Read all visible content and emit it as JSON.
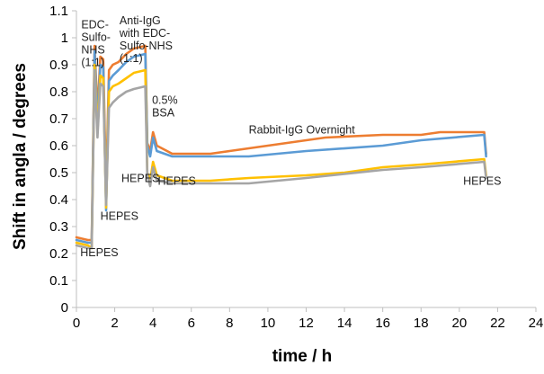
{
  "chart_data": {
    "type": "line",
    "title": "",
    "xlabel": "time / h",
    "ylabel": "Shift in angla / degrees",
    "xlim": [
      0,
      24
    ],
    "ylim": [
      0,
      1.1
    ],
    "xticks": [
      0,
      2,
      4,
      6,
      8,
      10,
      12,
      14,
      16,
      18,
      20,
      22,
      24
    ],
    "yticks": [
      0,
      0.1,
      0.2,
      0.3,
      0.4,
      0.5,
      0.6,
      0.7,
      0.8,
      0.9,
      1,
      1.1
    ],
    "grid": false,
    "legend": "none",
    "series": [
      {
        "color": "#ed7d31",
        "points": [
          [
            0,
            0.26
          ],
          [
            0.6,
            0.25
          ],
          [
            0.8,
            0.25
          ],
          [
            0.95,
            0.97
          ],
          [
            1.1,
            0.72
          ],
          [
            1.25,
            0.93
          ],
          [
            1.4,
            0.92
          ],
          [
            1.55,
            0.43
          ],
          [
            1.7,
            0.88
          ],
          [
            1.9,
            0.9
          ],
          [
            2.2,
            0.91
          ],
          [
            2.6,
            0.94
          ],
          [
            3.0,
            0.96
          ],
          [
            3.6,
            0.97
          ],
          [
            3.7,
            0.61
          ],
          [
            3.85,
            0.58
          ],
          [
            4.0,
            0.65
          ],
          [
            4.2,
            0.6
          ],
          [
            5,
            0.57
          ],
          [
            7,
            0.57
          ],
          [
            8,
            0.58
          ],
          [
            12,
            0.62
          ],
          [
            13,
            0.63
          ],
          [
            16,
            0.64
          ],
          [
            18,
            0.64
          ],
          [
            19,
            0.65
          ],
          [
            21.3,
            0.65
          ],
          [
            21.4,
            0.57
          ]
        ]
      },
      {
        "color": "#5b9bd5",
        "points": [
          [
            0,
            0.25
          ],
          [
            0.6,
            0.24
          ],
          [
            0.8,
            0.24
          ],
          [
            0.95,
            0.95
          ],
          [
            1.1,
            0.68
          ],
          [
            1.25,
            0.9
          ],
          [
            1.4,
            0.89
          ],
          [
            1.55,
            0.36
          ],
          [
            1.7,
            0.84
          ],
          [
            1.9,
            0.86
          ],
          [
            2.2,
            0.88
          ],
          [
            2.6,
            0.91
          ],
          [
            3.0,
            0.93
          ],
          [
            3.6,
            0.94
          ],
          [
            3.7,
            0.6
          ],
          [
            3.85,
            0.56
          ],
          [
            4.0,
            0.63
          ],
          [
            4.2,
            0.58
          ],
          [
            5,
            0.56
          ],
          [
            7,
            0.56
          ],
          [
            9,
            0.56
          ],
          [
            12,
            0.58
          ],
          [
            16,
            0.6
          ],
          [
            18,
            0.62
          ],
          [
            21.3,
            0.64
          ],
          [
            21.4,
            0.56
          ]
        ]
      },
      {
        "color": "#ffc000",
        "points": [
          [
            0,
            0.24
          ],
          [
            0.6,
            0.23
          ],
          [
            0.8,
            0.22
          ],
          [
            0.95,
            0.9
          ],
          [
            1.1,
            0.65
          ],
          [
            1.25,
            0.86
          ],
          [
            1.4,
            0.85
          ],
          [
            1.55,
            0.37
          ],
          [
            1.7,
            0.8
          ],
          [
            1.9,
            0.82
          ],
          [
            2.2,
            0.83
          ],
          [
            2.6,
            0.85
          ],
          [
            3.0,
            0.87
          ],
          [
            3.6,
            0.88
          ],
          [
            3.7,
            0.5
          ],
          [
            3.85,
            0.47
          ],
          [
            4.0,
            0.54
          ],
          [
            4.2,
            0.49
          ],
          [
            5,
            0.47
          ],
          [
            7,
            0.47
          ],
          [
            9,
            0.48
          ],
          [
            12,
            0.49
          ],
          [
            14,
            0.5
          ],
          [
            16,
            0.52
          ],
          [
            18,
            0.53
          ],
          [
            21.3,
            0.55
          ],
          [
            21.4,
            0.49
          ]
        ]
      },
      {
        "color": "#a5a5a5",
        "points": [
          [
            0,
            0.23
          ],
          [
            0.6,
            0.22
          ],
          [
            0.8,
            0.22
          ],
          [
            0.95,
            0.88
          ],
          [
            1.1,
            0.63
          ],
          [
            1.25,
            0.83
          ],
          [
            1.4,
            0.82
          ],
          [
            1.55,
            0.38
          ],
          [
            1.7,
            0.74
          ],
          [
            1.9,
            0.76
          ],
          [
            2.2,
            0.78
          ],
          [
            2.6,
            0.8
          ],
          [
            3.0,
            0.81
          ],
          [
            3.6,
            0.82
          ],
          [
            3.7,
            0.49
          ],
          [
            3.85,
            0.45
          ],
          [
            4.0,
            0.52
          ],
          [
            4.2,
            0.47
          ],
          [
            5,
            0.46
          ],
          [
            7,
            0.46
          ],
          [
            9,
            0.46
          ],
          [
            12,
            0.48
          ],
          [
            16,
            0.51
          ],
          [
            18,
            0.52
          ],
          [
            21.3,
            0.54
          ],
          [
            21.4,
            0.48
          ]
        ]
      }
    ],
    "annotations": [
      {
        "lines": [
          "EDC-",
          "Sulfo-",
          "NHS",
          "(1:1)"
        ],
        "x": 0.25,
        "y": 1.035
      },
      {
        "lines": [
          "Anti-IgG",
          "with EDC-",
          "Sulfo-NHS",
          "(1:1)"
        ],
        "x": 2.25,
        "y": 1.05
      },
      {
        "lines": [
          "0.5%",
          "BSA"
        ],
        "x": 3.95,
        "y": 0.755
      },
      {
        "lines": [
          "Rabbit-IgG Overnight"
        ],
        "x": 9.0,
        "y": 0.645
      },
      {
        "lines": [
          "HEPES"
        ],
        "x": 2.35,
        "y": 0.465
      },
      {
        "lines": [
          "HEPES"
        ],
        "x": 4.25,
        "y": 0.455
      },
      {
        "lines": [
          "HEPES"
        ],
        "x": 1.25,
        "y": 0.325
      },
      {
        "lines": [
          "HEPES"
        ],
        "x": 0.2,
        "y": 0.19
      },
      {
        "lines": [
          "HEPES"
        ],
        "x": 20.2,
        "y": 0.455
      }
    ]
  }
}
